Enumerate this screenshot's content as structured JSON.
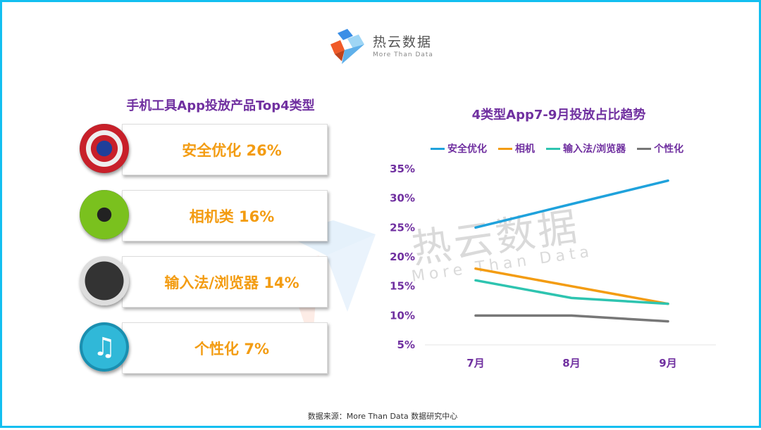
{
  "logo": {
    "cn": "热云数据",
    "en": "More Than Data"
  },
  "left": {
    "title": "手机工具App投放产品Top4类型",
    "items": [
      {
        "label": "安全优化 26%",
        "icon": "captain-shield-icon"
      },
      {
        "label": "相机类 16%",
        "icon": "camera-icon"
      },
      {
        "label": "输入法/浏览器 14%",
        "icon": "keyboard-icon"
      },
      {
        "label": "个性化 7%",
        "icon": "music-note-icon"
      }
    ]
  },
  "watermark": {
    "cn": "热云数据",
    "en": "More Than Data"
  },
  "footer": "数据来源：More  Than  Data  数据研究中心",
  "chart_data": {
    "type": "line",
    "title": "4类型App7-9月投放占比趋势",
    "categories": [
      "7月",
      "8月",
      "9月"
    ],
    "yticks": [
      "5%",
      "10%",
      "15%",
      "20%",
      "25%",
      "30%",
      "35%"
    ],
    "ylim": [
      5,
      35
    ],
    "legend": "top",
    "grid": false,
    "series": [
      {
        "name": "安全优化",
        "color": "#1fa2dc",
        "values": [
          25,
          29,
          33
        ]
      },
      {
        "name": "相机",
        "color": "#f39c12",
        "values": [
          18,
          15,
          12
        ]
      },
      {
        "name": "输入法/浏览器",
        "color": "#2ec4b0",
        "values": [
          16,
          13,
          12
        ]
      },
      {
        "name": "个性化",
        "color": "#777777",
        "values": [
          10,
          10,
          9
        ]
      }
    ]
  }
}
